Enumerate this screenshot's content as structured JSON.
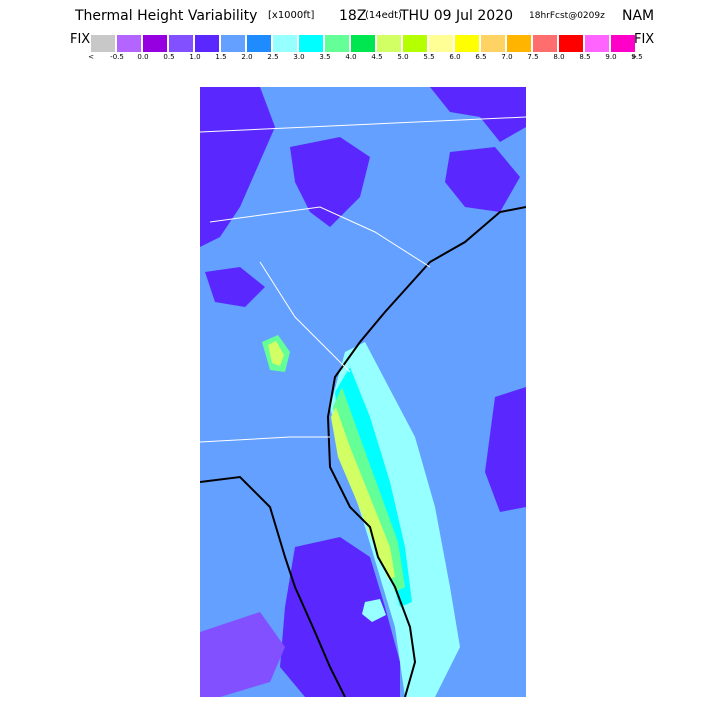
{
  "header": {
    "title": "Thermal Height Variability",
    "units": "[x1000ft]",
    "valid_time": "18Z",
    "local_time": "(14edt)",
    "date": "THU 09 Jul 2020",
    "forecast": "18hrFcst@0209z",
    "model": "NAM"
  },
  "scale": {
    "left_label": "FIX",
    "right_label": "FIX",
    "lower_arrow": "<",
    "upper_arrow": ">",
    "ticks": [
      "-0.5",
      "0.0",
      "0.5",
      "1.0",
      "1.5",
      "2.0",
      "2.5",
      "3.0",
      "3.5",
      "4.0",
      "4.5",
      "5.0",
      "5.5",
      "6.0",
      "6.5",
      "7.0",
      "7.5",
      "8.0",
      "8.5",
      "9.0",
      "9.5"
    ],
    "colors": [
      "#c8c8c8",
      "#b464ff",
      "#9600e1",
      "#8250ff",
      "#5a28ff",
      "#64a0ff",
      "#1e8cff",
      "#96ffff",
      "#00ffff",
      "#64ff96",
      "#00e650",
      "#d2ff64",
      "#b4ff00",
      "#ffff96",
      "#ffff00",
      "#ffd264",
      "#ffb400",
      "#ff6e6e",
      "#ff0000",
      "#ff64ff",
      "#ff00c8"
    ]
  },
  "map": {
    "colors": {
      "background": "#64a0ff",
      "low": "#5a28ff",
      "lower": "#8250ff",
      "cyan": "#96ffff",
      "cyan2": "#00ffff",
      "green": "#64ff96",
      "yellow": "#d2ff64",
      "coast": "#000000",
      "border": "#ffffff"
    }
  }
}
